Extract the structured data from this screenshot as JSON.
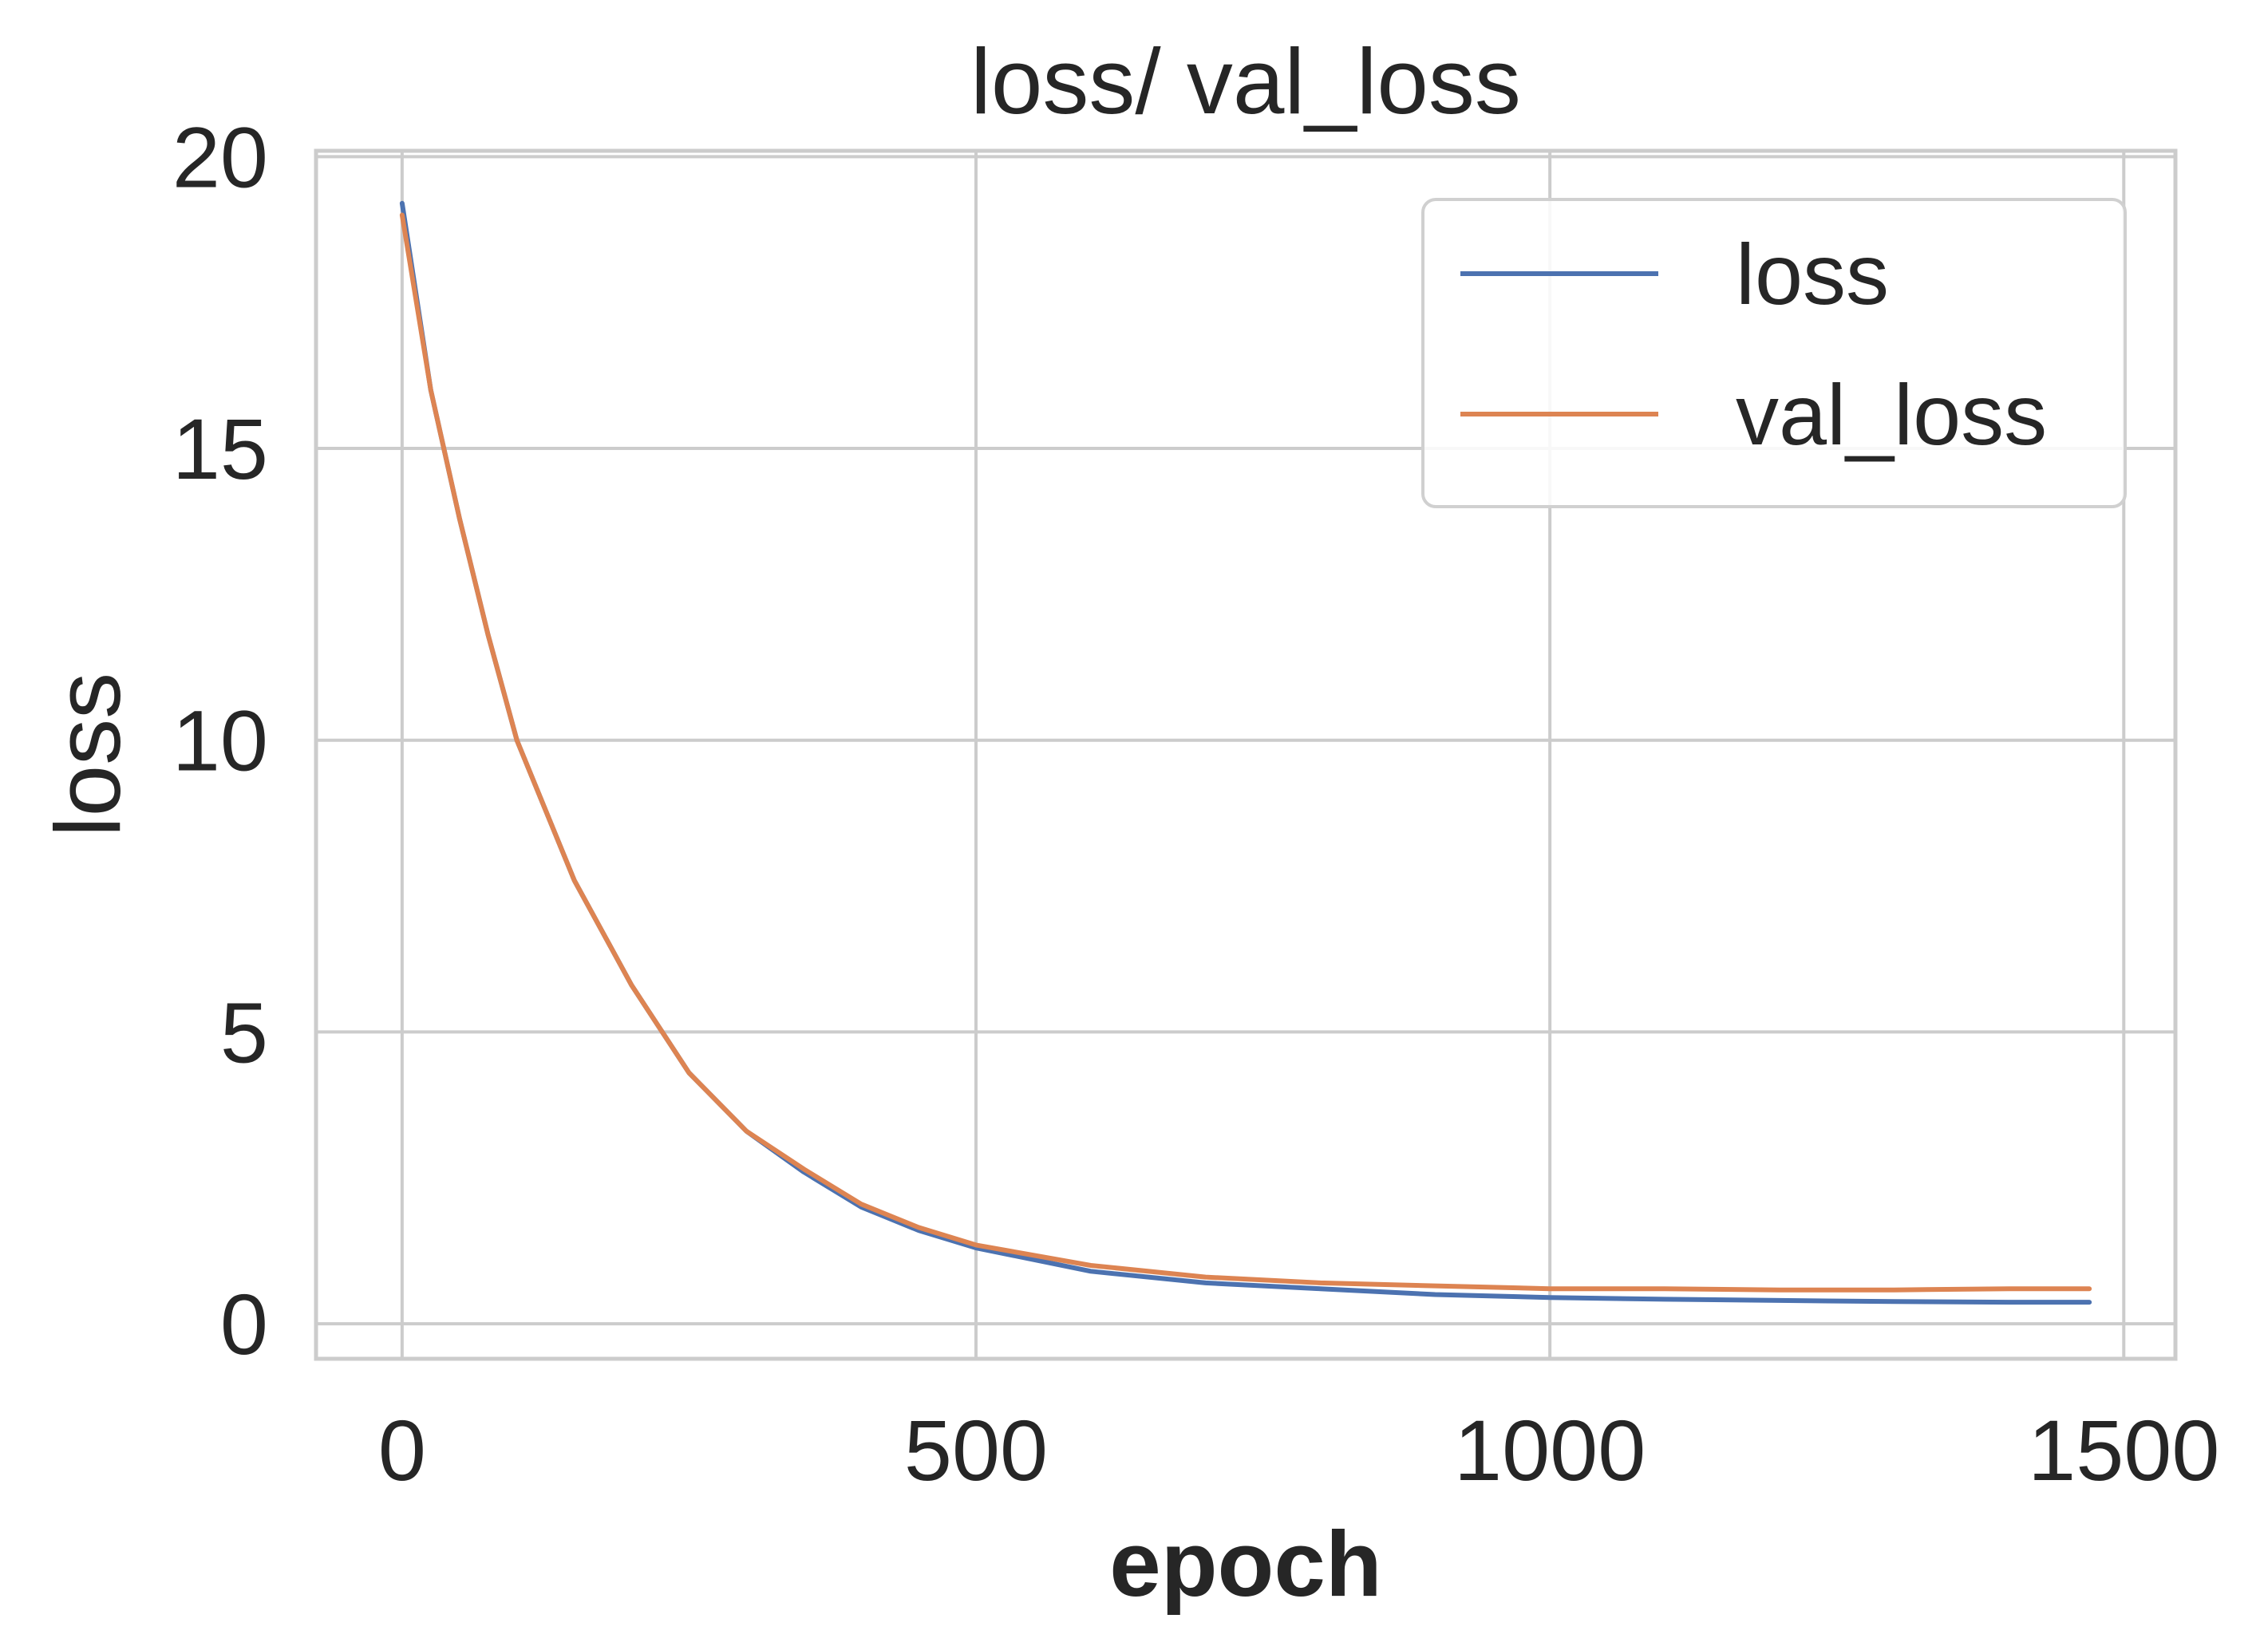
{
  "chart_data": {
    "type": "line",
    "title": "loss/ val_loss",
    "xlabel": "epoch",
    "ylabel": "loss",
    "xlim": [
      -75,
      1545
    ],
    "ylim": [
      -0.6,
      20.1
    ],
    "x_ticks": [
      0,
      500,
      1000,
      1500
    ],
    "y_ticks": [
      0,
      5,
      10,
      15,
      20
    ],
    "x_tick_labels": [
      "0",
      "500",
      "1000",
      "1500"
    ],
    "y_tick_labels": [
      "0",
      "5",
      "10",
      "15",
      "20"
    ],
    "grid": true,
    "legend_position": "top-right",
    "x": [
      0,
      25,
      50,
      75,
      100,
      150,
      200,
      250,
      300,
      350,
      400,
      450,
      500,
      600,
      700,
      800,
      900,
      1000,
      1100,
      1200,
      1300,
      1400,
      1470
    ],
    "series": [
      {
        "name": "loss",
        "color": "#4c72b0",
        "values": [
          19.2,
          16.0,
          13.8,
          11.8,
          10.0,
          7.6,
          5.8,
          4.3,
          3.3,
          2.6,
          2.0,
          1.6,
          1.3,
          0.9,
          0.7,
          0.6,
          0.5,
          0.45,
          0.42,
          0.4,
          0.38,
          0.37,
          0.37
        ]
      },
      {
        "name": "val_loss",
        "color": "#dd8452",
        "values": [
          19.0,
          16.0,
          13.8,
          11.8,
          10.0,
          7.6,
          5.8,
          4.3,
          3.3,
          2.65,
          2.05,
          1.65,
          1.35,
          1.0,
          0.8,
          0.7,
          0.65,
          0.6,
          0.6,
          0.58,
          0.58,
          0.6,
          0.6
        ]
      }
    ]
  }
}
